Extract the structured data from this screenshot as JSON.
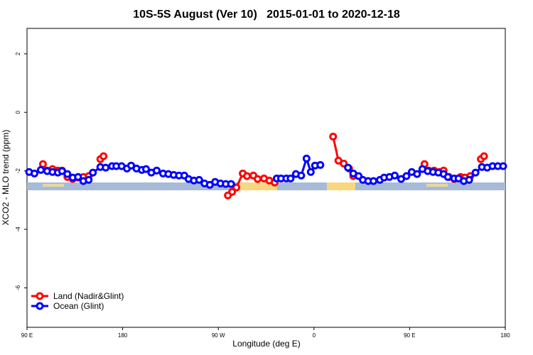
{
  "chart_data": {
    "type": "line",
    "title": "10S-5S August (Ver 10)   2015-01-01 to 2020-12-18",
    "x_label": "Longitude (deg E)",
    "y_label": "XCO2 - MLO trend (ppm)",
    "xlim": [
      90,
      540
    ],
    "ylim": [
      -7.35,
      2.87
    ],
    "xticks": [
      {
        "value": 90,
        "label": "90 E"
      },
      180,
      {
        "value": 270,
        "label": "90 W"
      },
      {
        "value": 360,
        "label": "0"
      },
      {
        "value": 450,
        "label": "90 E"
      },
      {
        "value": 540,
        "label": "180"
      }
    ],
    "yticks": [
      2,
      0,
      -2,
      -4,
      -6
    ],
    "legend": "bottom-left",
    "series": [
      {
        "name": "Land (Nadir&Glint)",
        "color": "#ff0000",
        "x": [
          105,
          109,
          114,
          119,
          123,
          128,
          133,
          138,
          143,
          148,
          155,
          159,
          162,
          230,
          279,
          283,
          287,
          293,
          297,
          303,
          307,
          313,
          318,
          323,
          350,
          378,
          383,
          388,
          393,
          397,
          430,
          464,
          468,
          473,
          478,
          482,
          487,
          492,
          498,
          502,
          507,
          515,
          517,
          520
        ],
        "values": [
          -1.77,
          -1.99,
          -1.94,
          -1.99,
          -1.99,
          -2.21,
          -2.28,
          -2.23,
          -2.21,
          -2.18,
          null,
          -1.6,
          -1.5,
          null,
          -2.84,
          -2.72,
          -2.57,
          -2.09,
          -2.18,
          -2.16,
          -2.28,
          -2.26,
          -2.33,
          -2.4,
          null,
          -0.83,
          -1.65,
          -1.75,
          -1.92,
          -2.18,
          null,
          -1.77,
          -1.99,
          -1.99,
          -2.04,
          -1.99,
          -2.21,
          -2.28,
          -2.21,
          -2.23,
          -2.18,
          null,
          -1.6,
          -1.5
        ]
      },
      {
        "name": "Ocean (Glint)",
        "color": "#0000ff",
        "x": [
          92,
          97,
          103,
          109,
          114,
          119,
          123,
          128,
          133,
          138,
          143,
          148,
          152,
          159,
          164,
          170,
          174,
          179,
          184,
          188,
          193,
          198,
          202,
          207,
          212,
          218,
          223,
          228,
          233,
          238,
          242,
          247,
          252,
          257,
          262,
          267,
          272,
          277,
          282,
          300,
          325,
          329,
          334,
          338,
          343,
          348,
          353,
          357,
          361,
          366,
          380,
          392,
          397,
          402,
          406,
          411,
          416,
          422,
          426,
          431,
          436,
          442,
          447,
          452,
          457,
          462,
          467,
          472,
          477,
          482,
          486,
          492,
          496,
          501,
          506,
          512,
          518,
          523,
          528,
          533,
          538
        ],
        "values": [
          -2.04,
          -2.09,
          -1.97,
          -2.01,
          -2.04,
          -2.06,
          -2.01,
          -2.11,
          -2.23,
          -2.21,
          -2.35,
          -2.31,
          -2.06,
          -1.87,
          -1.89,
          -1.84,
          -1.84,
          -1.84,
          -1.92,
          -1.82,
          -1.92,
          -1.97,
          -1.94,
          -2.06,
          -1.99,
          -2.09,
          -2.11,
          -2.14,
          -2.16,
          -2.16,
          -2.28,
          -2.33,
          -2.31,
          -2.43,
          -2.48,
          -2.38,
          -2.43,
          -2.45,
          -2.45,
          null,
          -2.26,
          -2.26,
          -2.26,
          -2.26,
          -2.11,
          -2.16,
          -1.58,
          -2.04,
          -1.82,
          -1.8,
          null,
          -1.89,
          -2.09,
          -2.18,
          -2.31,
          -2.35,
          -2.35,
          -2.31,
          -2.23,
          -2.21,
          -2.16,
          -2.28,
          -2.18,
          -2.04,
          -2.11,
          -1.94,
          -2.01,
          -2.04,
          -2.06,
          -2.11,
          -2.21,
          -2.26,
          -2.26,
          -2.35,
          -2.31,
          -2.06,
          -1.87,
          -1.89,
          -1.84,
          -1.84,
          -1.84
        ]
      }
    ]
  }
}
